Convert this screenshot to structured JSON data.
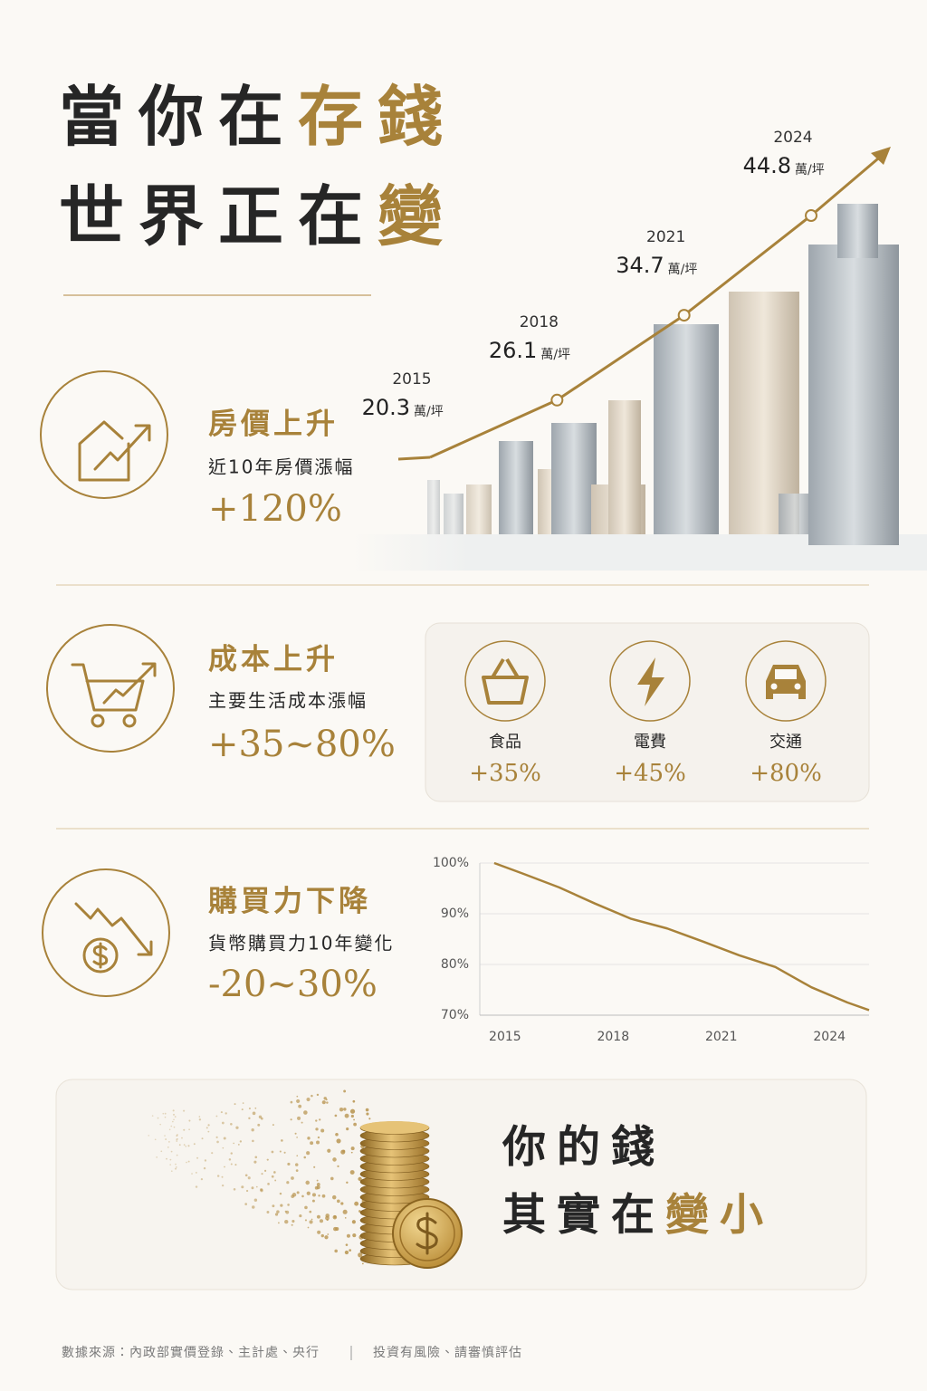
{
  "header": {
    "line1": "當你在",
    "line1_highlight": "存錢",
    "line2": "世界正在",
    "line2_highlight": "變"
  },
  "sections": [
    {
      "title": "房價上升",
      "subtitle": "近10年房價漲幅",
      "figure": "+120%"
    },
    {
      "title": "成本上升",
      "subtitle": "主要生活成本漲幅",
      "figure": "+35~80%",
      "items": [
        {
          "label": "食品",
          "figure": "+35%"
        },
        {
          "label": "電費",
          "figure": "+45%"
        },
        {
          "label": "交通",
          "figure": "+80%"
        }
      ]
    },
    {
      "title": "購買力下降",
      "subtitle": "貨幣購買力10年變化",
      "figure": "-20~30%"
    }
  ],
  "closing": {
    "line1": "你的錢",
    "line2": "其實在",
    "line2_highlight": "變小"
  },
  "footer": {
    "source": "數據來源：內政部實價登錄、主計處、央行",
    "note": "投資有風險、請審慎評估"
  },
  "chart_data": [
    {
      "type": "line",
      "x": [
        2015,
        2018,
        2021,
        2024
      ],
      "values": [
        20.3,
        26.1,
        34.7,
        44.8
      ],
      "unit": "萬/坪",
      "color": "#a8823a"
    },
    {
      "type": "line",
      "x": [
        2014.7,
        2015.5,
        2016.5,
        2017.5,
        2018.5,
        2019.5,
        2020.5,
        2021.5,
        2022.5,
        2023.5,
        2024.5,
        2025.1
      ],
      "values": [
        100,
        97.9,
        95.2,
        92,
        89,
        87.1,
        84.5,
        81.8,
        79.5,
        75.5,
        72.5,
        71
      ],
      "xlim": [
        2014.3,
        2025.1
      ],
      "ylim": [
        70,
        100
      ],
      "xticks": [
        2015,
        2018,
        2021,
        2024
      ],
      "yticks": [
        {
          "value": 70,
          "label": "70%"
        },
        {
          "value": 80,
          "label": "80%"
        },
        {
          "value": 90,
          "label": "90%"
        },
        {
          "value": 100,
          "label": "100%"
        }
      ],
      "grid": true,
      "color": "#a8823a"
    }
  ]
}
